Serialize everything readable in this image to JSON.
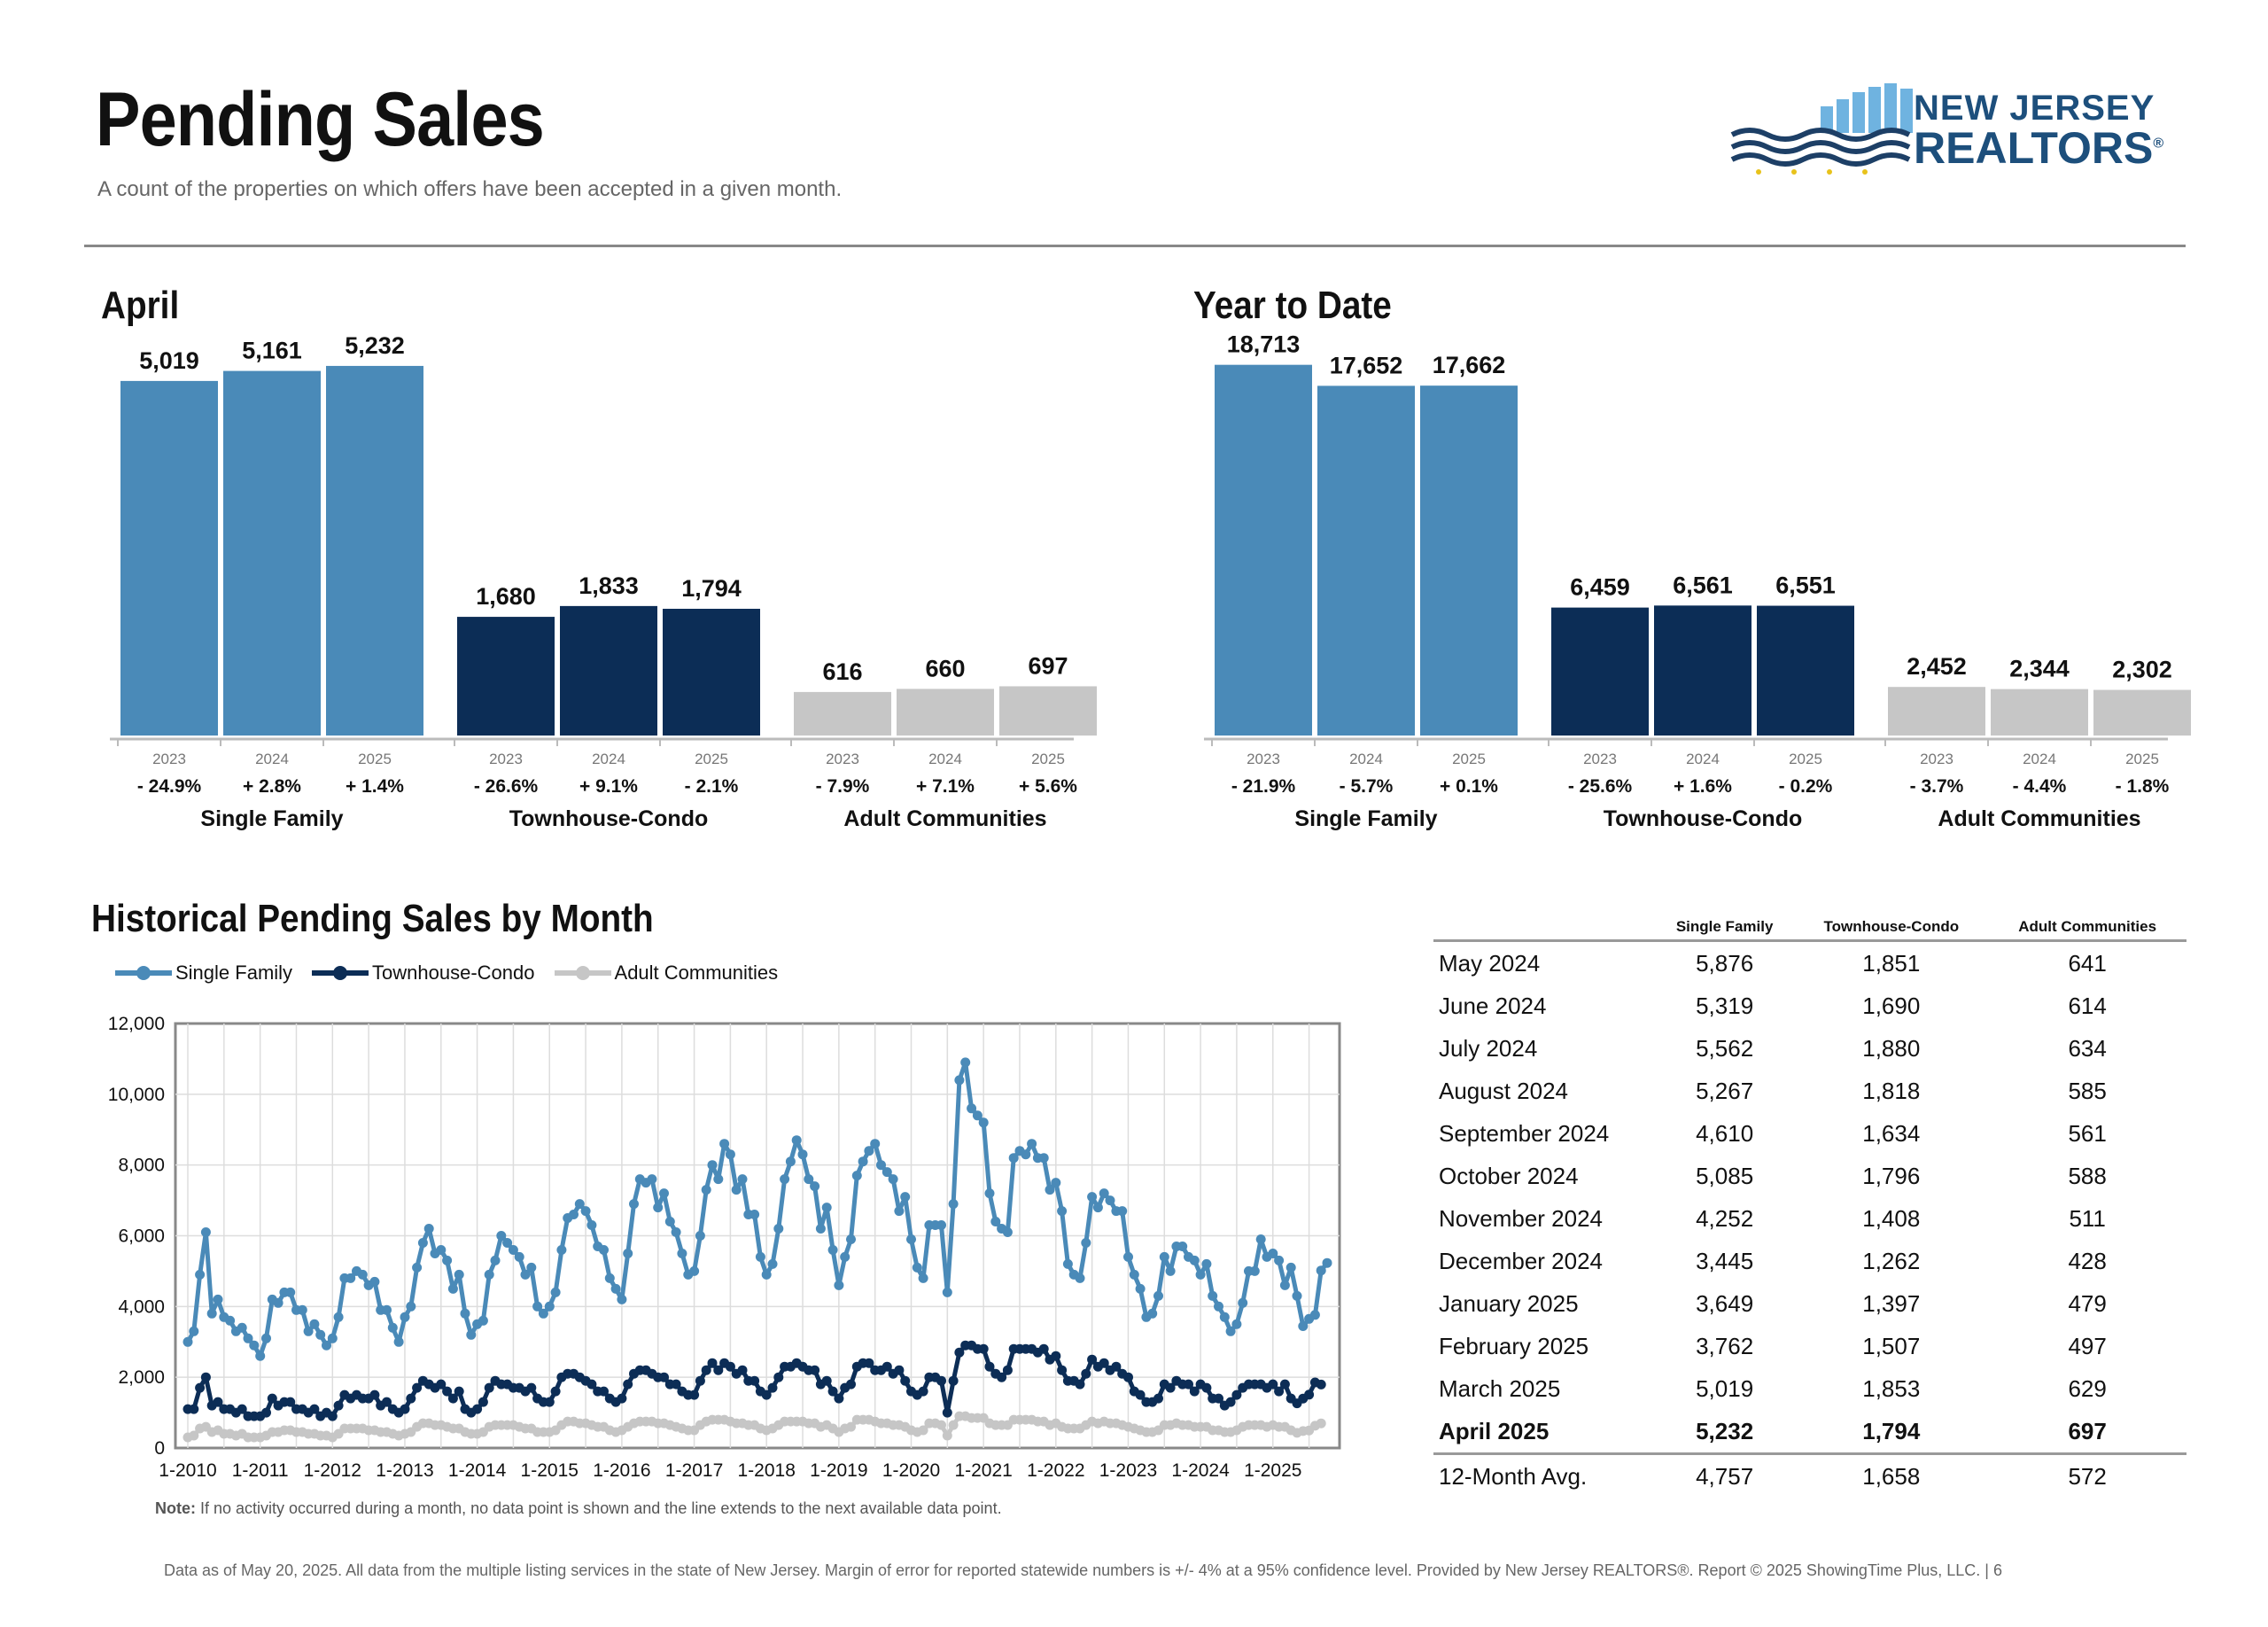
{
  "header": {
    "title": "Pending Sales",
    "subtitle": "A count of the properties on which offers have been accepted in a given month."
  },
  "logo": {
    "line1": "NEW JERSEY",
    "line2": "REALTORS",
    "mark": "®"
  },
  "colors": {
    "single_family": "#4a8ab8",
    "townhouse_condo": "#0c2d56",
    "adult_communities": "#c6c6c6"
  },
  "sections": {
    "april_title": "April",
    "ytd_title": "Year to Date",
    "historical_title": "Historical Pending Sales by Month"
  },
  "legend": [
    "Single Family",
    "Townhouse-Condo",
    "Adult Communities"
  ],
  "chart_data": [
    {
      "type": "bar",
      "title": "April",
      "groups": [
        {
          "name": "Single Family",
          "years": [
            "2023",
            "2024",
            "2025"
          ],
          "values": [
            5019,
            5161,
            5232
          ],
          "labels": [
            "5,019",
            "5,161",
            "5,232"
          ],
          "changes": [
            "- 24.9%",
            "+ 2.8%",
            "+ 1.4%"
          ]
        },
        {
          "name": "Townhouse-Condo",
          "years": [
            "2023",
            "2024",
            "2025"
          ],
          "values": [
            1680,
            1833,
            1794
          ],
          "labels": [
            "1,680",
            "1,833",
            "1,794"
          ],
          "changes": [
            "- 26.6%",
            "+ 9.1%",
            "- 2.1%"
          ]
        },
        {
          "name": "Adult Communities",
          "years": [
            "2023",
            "2024",
            "2025"
          ],
          "values": [
            616,
            660,
            697
          ],
          "labels": [
            "616",
            "660",
            "697"
          ],
          "changes": [
            "- 7.9%",
            "+ 7.1%",
            "+ 5.6%"
          ]
        }
      ]
    },
    {
      "type": "bar",
      "title": "Year to Date",
      "groups": [
        {
          "name": "Single Family",
          "years": [
            "2023",
            "2024",
            "2025"
          ],
          "values": [
            18713,
            17652,
            17662
          ],
          "labels": [
            "18,713",
            "17,652",
            "17,662"
          ],
          "changes": [
            "- 21.9%",
            "- 5.7%",
            "+ 0.1%"
          ]
        },
        {
          "name": "Townhouse-Condo",
          "years": [
            "2023",
            "2024",
            "2025"
          ],
          "values": [
            6459,
            6561,
            6551
          ],
          "labels": [
            "6,459",
            "6,561",
            "6,551"
          ],
          "changes": [
            "- 25.6%",
            "+ 1.6%",
            "- 0.2%"
          ]
        },
        {
          "name": "Adult Communities",
          "years": [
            "2023",
            "2024",
            "2025"
          ],
          "values": [
            2452,
            2344,
            2302
          ],
          "labels": [
            "2,452",
            "2,344",
            "2,302"
          ],
          "changes": [
            "- 3.7%",
            "- 4.4%",
            "- 1.8%"
          ]
        }
      ]
    },
    {
      "type": "line",
      "title": "Historical Pending Sales by Month",
      "ylim": [
        0,
        12000
      ],
      "yticks": [
        "0",
        "2,000",
        "4,000",
        "6,000",
        "8,000",
        "10,000",
        "12,000"
      ],
      "xticks": [
        "1-2010",
        "1-2011",
        "1-2012",
        "1-2013",
        "1-2014",
        "1-2015",
        "1-2016",
        "1-2017",
        "1-2018",
        "1-2019",
        "1-2020",
        "1-2021",
        "1-2022",
        "1-2023",
        "1-2024",
        "1-2025"
      ],
      "x_start": "2010-01",
      "x_end": "2025-04",
      "grid": true,
      "legend_position": "top-left",
      "series": [
        {
          "name": "Single Family",
          "values": [
            3000,
            3300,
            4900,
            6100,
            3800,
            4200,
            3700,
            3600,
            3300,
            3400,
            3100,
            2900,
            2600,
            3100,
            4200,
            4100,
            4400,
            4400,
            3900,
            3900,
            3300,
            3500,
            3200,
            2900,
            3100,
            3700,
            4800,
            4800,
            5000,
            4900,
            4600,
            4700,
            3900,
            3900,
            3400,
            3000,
            3700,
            4000,
            5100,
            5800,
            6200,
            5500,
            5600,
            5300,
            4500,
            4900,
            3800,
            3200,
            3500,
            3600,
            4900,
            5300,
            6000,
            5800,
            5600,
            5400,
            4900,
            5100,
            4000,
            3800,
            4000,
            4400,
            5600,
            6500,
            6600,
            6900,
            6700,
            6300,
            5700,
            5600,
            4800,
            4500,
            4200,
            5500,
            6900,
            7600,
            7500,
            7600,
            6800,
            7200,
            6400,
            6100,
            5500,
            4900,
            5000,
            6000,
            7300,
            8000,
            7600,
            8600,
            8300,
            7300,
            7600,
            6600,
            6600,
            5400,
            4900,
            5200,
            6200,
            7600,
            8100,
            8700,
            8300,
            7600,
            7400,
            6200,
            6800,
            5600,
            4600,
            5400,
            5900,
            7700,
            8100,
            8400,
            8600,
            8000,
            7800,
            7600,
            6700,
            7100,
            5900,
            5100,
            4800,
            6300,
            6300,
            6300,
            4400,
            6900,
            10400,
            10900,
            9600,
            9400,
            9200,
            7200,
            6400,
            6200,
            6100,
            8200,
            8400,
            8300,
            8600,
            8200,
            8200,
            7300,
            7500,
            6700,
            5200,
            4900,
            4800,
            5800,
            7100,
            6800,
            7200,
            7000,
            6700,
            6700,
            5400,
            4900,
            4500,
            3700,
            3800,
            4300,
            5400,
            5000,
            5700,
            5700,
            5400,
            5300,
            4900,
            5200,
            4300,
            4000,
            3700,
            3300,
            3500,
            4100,
            5000,
            5000,
            5900,
            5400,
            5500,
            5300,
            4600,
            5100,
            4300,
            3445,
            3649,
            3762,
            5019,
            5232
          ]
        },
        {
          "name": "Townhouse-Condo",
          "values": [
            1100,
            1100,
            1700,
            2000,
            1200,
            1300,
            1100,
            1100,
            1000,
            1100,
            900,
            900,
            900,
            1000,
            1400,
            1200,
            1300,
            1300,
            1100,
            1100,
            1000,
            1100,
            900,
            1000,
            900,
            1200,
            1500,
            1400,
            1500,
            1400,
            1400,
            1500,
            1200,
            1300,
            1100,
            1000,
            1100,
            1400,
            1700,
            1900,
            1800,
            1700,
            1800,
            1600,
            1400,
            1600,
            1100,
            1000,
            1100,
            1300,
            1700,
            1900,
            1800,
            1800,
            1700,
            1700,
            1600,
            1700,
            1400,
            1300,
            1300,
            1600,
            2000,
            2100,
            2100,
            2000,
            1900,
            1800,
            1600,
            1600,
            1400,
            1300,
            1400,
            1800,
            2100,
            2200,
            2200,
            2100,
            2000,
            2000,
            1800,
            1800,
            1600,
            1500,
            1500,
            1900,
            2200,
            2400,
            2200,
            2400,
            2300,
            2100,
            2200,
            1900,
            1900,
            1600,
            1500,
            1700,
            2000,
            2300,
            2300,
            2400,
            2300,
            2200,
            2200,
            1800,
            1900,
            1600,
            1400,
            1700,
            1800,
            2300,
            2400,
            2400,
            2200,
            2200,
            2300,
            2100,
            2200,
            1900,
            1600,
            1500,
            1600,
            2000,
            2000,
            1900,
            1000,
            1900,
            2700,
            2900,
            2900,
            2800,
            2800,
            2300,
            2100,
            2000,
            2200,
            2800,
            2800,
            2800,
            2800,
            2700,
            2800,
            2500,
            2600,
            2200,
            1900,
            1900,
            1800,
            2100,
            2500,
            2300,
            2400,
            2200,
            2300,
            2100,
            2000,
            1600,
            1500,
            1300,
            1300,
            1400,
            1800,
            1700,
            1900,
            1800,
            1800,
            1600,
            1800,
            1700,
            1400,
            1400,
            1200,
            1300,
            1500,
            1700,
            1800,
            1800,
            1800,
            1700,
            1800,
            1600,
            1800,
            1400,
            1262,
            1397,
            1507,
            1853,
            1794
          ]
        },
        {
          "name": "Adult Communities",
          "values": [
            300,
            350,
            550,
            600,
            450,
            500,
            400,
            400,
            350,
            400,
            300,
            300,
            300,
            350,
            450,
            450,
            500,
            500,
            450,
            450,
            400,
            400,
            350,
            350,
            300,
            400,
            550,
            550,
            550,
            550,
            500,
            500,
            450,
            450,
            400,
            350,
            400,
            450,
            600,
            700,
            700,
            650,
            650,
            600,
            550,
            550,
            450,
            400,
            400,
            450,
            600,
            650,
            650,
            650,
            650,
            600,
            550,
            550,
            450,
            450,
            450,
            500,
            650,
            750,
            750,
            700,
            700,
            650,
            600,
            600,
            500,
            450,
            500,
            600,
            700,
            750,
            750,
            750,
            700,
            700,
            650,
            600,
            550,
            500,
            500,
            650,
            750,
            800,
            800,
            800,
            750,
            700,
            700,
            650,
            650,
            550,
            500,
            550,
            650,
            750,
            750,
            750,
            750,
            700,
            700,
            600,
            650,
            550,
            450,
            550,
            600,
            800,
            800,
            800,
            750,
            700,
            700,
            650,
            650,
            600,
            500,
            450,
            500,
            700,
            700,
            650,
            350,
            650,
            900,
            900,
            850,
            850,
            850,
            700,
            650,
            650,
            650,
            800,
            800,
            800,
            800,
            750,
            750,
            650,
            700,
            600,
            550,
            550,
            550,
            650,
            750,
            700,
            750,
            700,
            700,
            650,
            600,
            550,
            500,
            450,
            450,
            500,
            650,
            650,
            700,
            650,
            650,
            600,
            600,
            600,
            500,
            500,
            450,
            450,
            500,
            600,
            650,
            650,
            650,
            600,
            650,
            600,
            600,
            500,
            428,
            479,
            497,
            629,
            697
          ]
        }
      ]
    }
  ],
  "table": {
    "headers": [
      "",
      "Single Family",
      "Townhouse-Condo",
      "Adult Communities"
    ],
    "rows": [
      [
        "May 2024",
        "5,876",
        "1,851",
        "641"
      ],
      [
        "June 2024",
        "5,319",
        "1,690",
        "614"
      ],
      [
        "July 2024",
        "5,562",
        "1,880",
        "634"
      ],
      [
        "August 2024",
        "5,267",
        "1,818",
        "585"
      ],
      [
        "September 2024",
        "4,610",
        "1,634",
        "561"
      ],
      [
        "October 2024",
        "5,085",
        "1,796",
        "588"
      ],
      [
        "November 2024",
        "4,252",
        "1,408",
        "511"
      ],
      [
        "December 2024",
        "3,445",
        "1,262",
        "428"
      ],
      [
        "January 2025",
        "3,649",
        "1,397",
        "479"
      ],
      [
        "February 2025",
        "3,762",
        "1,507",
        "497"
      ],
      [
        "March 2025",
        "5,019",
        "1,853",
        "629"
      ],
      [
        "April 2025",
        "5,232",
        "1,794",
        "697"
      ]
    ],
    "bold_row": 11,
    "avg": [
      "12-Month Avg.",
      "4,757",
      "1,658",
      "572"
    ]
  },
  "note": {
    "label": "Note:",
    "text": " If no activity occurred during a month, no data point is shown and the line extends to the next available data point."
  },
  "footer": "Data as of May 20, 2025. All data from the multiple listing services in the state of New Jersey. Margin of error for reported statewide numbers is +/- 4% at a 95% confidence level. Provided by New Jersey REALTORS®. Report © 2025 ShowingTime Plus, LLC. | 6"
}
